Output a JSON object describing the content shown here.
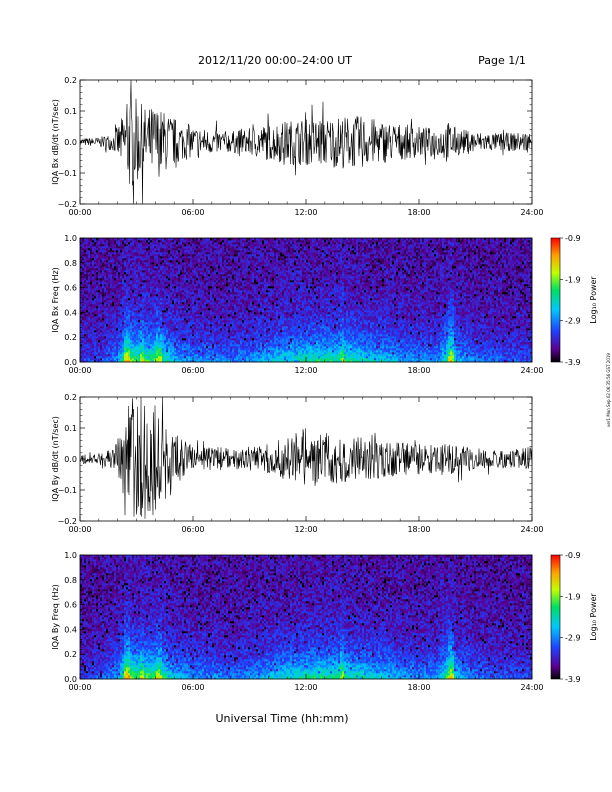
{
  "header": {
    "title": "2012/11/20  00:00–24:00 UT",
    "page": "Page 1/1"
  },
  "footer": {
    "xlabel": "Universal Time (hh:mm)"
  },
  "stamp": "ver1 Mon Sep 02 06:35:56 GST 2019",
  "colorbar": {
    "label": "Log₁₀ Power",
    "ticks": [
      "-0.9",
      "-1.9",
      "-2.9",
      "-3.9"
    ],
    "range": [
      -3.9,
      -0.9
    ]
  },
  "x_ticks": [
    "00:00",
    "06:00",
    "12:00",
    "18:00",
    "24:00"
  ],
  "chart_data": [
    {
      "type": "line",
      "name": "bx-ts",
      "ylabel": "IQA Bx dB/dt (nT/sec)",
      "xlim": [
        0,
        24
      ],
      "ylim": [
        -0.2,
        0.2
      ],
      "yticks": [
        "0.2",
        "0.1",
        "0.0",
        "−0.1",
        "−0.2"
      ],
      "amplitude_envelope": {
        "hours": [
          0,
          1,
          1.8,
          2.3,
          2.6,
          3.0,
          3.5,
          4.0,
          4.5,
          5.0,
          5.5,
          6.0,
          7.0,
          8.0,
          9.0,
          10.0,
          11.0,
          11.5,
          12.0,
          12.5,
          13.0,
          14.0,
          15.0,
          16.0,
          17.0,
          18.0,
          19.0,
          19.5,
          20.0,
          21.0,
          22.0,
          23.0,
          24.0
        ],
        "amplitude": [
          0.012,
          0.015,
          0.03,
          0.09,
          0.16,
          0.14,
          0.11,
          0.12,
          0.1,
          0.08,
          0.06,
          0.05,
          0.04,
          0.035,
          0.045,
          0.06,
          0.07,
          0.075,
          0.075,
          0.08,
          0.08,
          0.085,
          0.085,
          0.07,
          0.06,
          0.05,
          0.045,
          0.07,
          0.045,
          0.035,
          0.03,
          0.03,
          0.035
        ]
      }
    },
    {
      "type": "heatmap",
      "name": "bx-spec",
      "ylabel": "IQA Bx Freq (Hz)",
      "xlim": [
        0,
        24
      ],
      "ylim": [
        0,
        1.0
      ],
      "yticks": [
        "1.0",
        "0.8",
        "0.6",
        "0.4",
        "0.2",
        "0.0"
      ],
      "activity": {
        "hours": [
          0,
          1,
          2,
          2.5,
          3.0,
          3.5,
          4.0,
          4.5,
          5.0,
          6.0,
          7.0,
          8.0,
          9.0,
          10.0,
          11.0,
          12.0,
          13.0,
          14.0,
          15.0,
          16.0,
          17.0,
          18.0,
          19.0,
          19.7,
          20.0,
          21.0,
          22.0,
          24.0
        ],
        "level": [
          0.15,
          0.2,
          0.35,
          0.85,
          0.7,
          0.7,
          0.75,
          0.65,
          0.45,
          0.35,
          0.35,
          0.3,
          0.35,
          0.45,
          0.55,
          0.6,
          0.65,
          0.65,
          0.55,
          0.5,
          0.4,
          0.35,
          0.35,
          0.8,
          0.45,
          0.3,
          0.25,
          0.2
        ]
      },
      "vertical_streaks": [
        2.5,
        3.3,
        4.2,
        13.95,
        19.7
      ]
    },
    {
      "type": "line",
      "name": "by-ts",
      "ylabel": "IQA By dB/dt (nT/sec)",
      "xlim": [
        0,
        24
      ],
      "ylim": [
        -0.2,
        0.2
      ],
      "yticks": [
        "0.2",
        "0.1",
        "0.0",
        "−0.1",
        "−0.2"
      ],
      "amplitude_envelope": {
        "hours": [
          0,
          1,
          1.8,
          2.3,
          2.6,
          3.0,
          3.5,
          4.0,
          4.5,
          5.0,
          5.5,
          6.0,
          7.0,
          8.0,
          9.0,
          10.0,
          11.0,
          11.5,
          12.0,
          12.5,
          13.0,
          14.0,
          15.0,
          16.0,
          17.0,
          18.0,
          19.0,
          19.5,
          20.0,
          21.0,
          22.0,
          23.0,
          24.0
        ],
        "amplitude": [
          0.015,
          0.02,
          0.035,
          0.12,
          0.2,
          0.2,
          0.2,
          0.19,
          0.17,
          0.09,
          0.06,
          0.045,
          0.04,
          0.035,
          0.04,
          0.05,
          0.07,
          0.09,
          0.1,
          0.09,
          0.085,
          0.075,
          0.07,
          0.06,
          0.055,
          0.05,
          0.045,
          0.05,
          0.045,
          0.035,
          0.03,
          0.03,
          0.04
        ]
      }
    },
    {
      "type": "heatmap",
      "name": "by-spec",
      "ylabel": "IQA By Freq (Hz)",
      "xlim": [
        0,
        24
      ],
      "ylim": [
        0,
        1.0
      ],
      "yticks": [
        "1.0",
        "0.8",
        "0.6",
        "0.4",
        "0.2",
        "0.0"
      ],
      "activity": {
        "hours": [
          0,
          1,
          2,
          2.5,
          3.0,
          3.5,
          4.0,
          4.5,
          5.0,
          6.0,
          7.0,
          8.0,
          9.0,
          10.0,
          11.0,
          12.0,
          13.0,
          14.0,
          15.0,
          16.0,
          17.0,
          18.0,
          19.0,
          19.7,
          20.0,
          21.0,
          22.0,
          24.0
        ],
        "level": [
          0.15,
          0.2,
          0.4,
          0.9,
          0.75,
          0.75,
          0.75,
          0.65,
          0.45,
          0.35,
          0.35,
          0.3,
          0.35,
          0.45,
          0.55,
          0.6,
          0.65,
          0.65,
          0.55,
          0.5,
          0.4,
          0.35,
          0.35,
          0.85,
          0.45,
          0.3,
          0.25,
          0.2
        ]
      },
      "vertical_streaks": [
        2.5,
        3.3,
        4.2,
        13.95,
        19.7
      ]
    }
  ]
}
